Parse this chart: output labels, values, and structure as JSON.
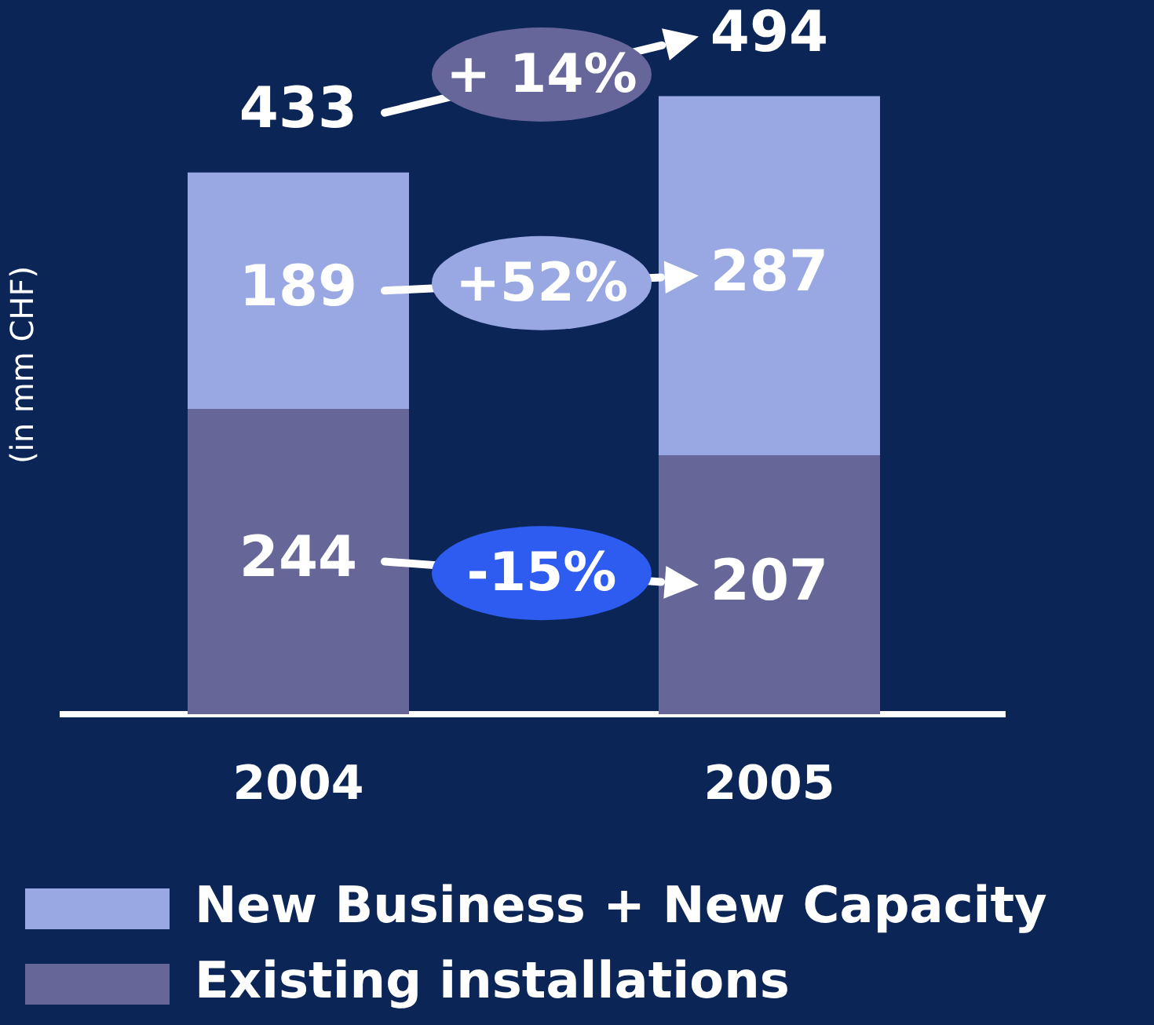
{
  "chart_data": {
    "type": "bar",
    "categories": [
      "2004",
      "2005"
    ],
    "stacked": true,
    "data_labels": true,
    "totals": [
      "433",
      "494"
    ],
    "ylabel": "(in mm CHF)",
    "tick_labels": "x",
    "grid": false,
    "legend": "bottom",
    "series": [
      {
        "name": "Existing installations",
        "color": "#666699",
        "values": [
          244,
          207
        ]
      },
      {
        "name": "New Business + New Capacity",
        "color": "#99a8e3",
        "values": [
          189,
          287
        ]
      }
    ],
    "annotations": [
      "+ 14%",
      "+52%",
      "-15%"
    ]
  }
}
